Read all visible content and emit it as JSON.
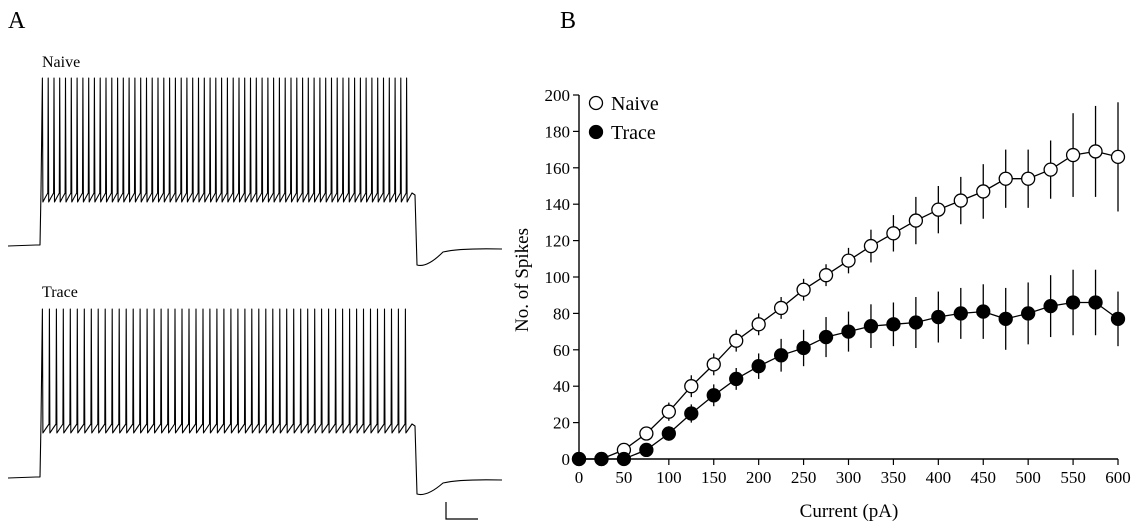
{
  "panels": {
    "a": {
      "letter": "A",
      "traces": [
        {
          "label": "Naive",
          "spike_count": 64
        },
        {
          "label": "Trace",
          "spike_count": 53
        }
      ]
    },
    "b": {
      "letter": "B"
    }
  },
  "chart_data": {
    "type": "scatter",
    "title": "",
    "xlabel": "Current (pA)",
    "ylabel": "No. of Spikes",
    "xlim": [
      0,
      600
    ],
    "ylim": [
      0,
      200
    ],
    "xticks": [
      0,
      50,
      100,
      150,
      200,
      250,
      300,
      350,
      400,
      450,
      500,
      550,
      600
    ],
    "yticks": [
      0,
      20,
      40,
      60,
      80,
      100,
      120,
      140,
      160,
      180,
      200
    ],
    "legend_position": "top-left",
    "x": [
      0,
      25,
      50,
      75,
      100,
      125,
      150,
      175,
      200,
      225,
      250,
      275,
      300,
      325,
      350,
      375,
      400,
      425,
      450,
      475,
      500,
      525,
      550,
      575,
      600
    ],
    "series": [
      {
        "name": "Naive",
        "marker": "open-circle",
        "color": "#000000",
        "values": [
          0,
          0,
          5,
          14,
          26,
          40,
          52,
          65,
          74,
          83,
          93,
          101,
          109,
          117,
          124,
          131,
          137,
          142,
          147,
          154,
          154,
          159,
          167,
          169,
          166
        ],
        "errors": [
          0,
          0,
          2,
          3,
          5,
          6,
          6,
          6,
          6,
          6,
          6,
          6,
          7,
          9,
          10,
          13,
          13,
          13,
          15,
          16,
          16,
          16,
          23,
          25,
          30
        ]
      },
      {
        "name": "Trace",
        "marker": "filled-circle",
        "color": "#000000",
        "values": [
          0,
          0,
          0,
          5,
          14,
          25,
          35,
          44,
          51,
          57,
          61,
          67,
          70,
          73,
          74,
          75,
          78,
          80,
          81,
          77,
          80,
          84,
          86,
          86,
          77
        ],
        "errors": [
          0,
          0,
          2,
          3,
          4,
          5,
          6,
          6,
          7,
          9,
          10,
          11,
          11,
          12,
          12,
          14,
          14,
          14,
          15,
          17,
          17,
          17,
          18,
          18,
          15
        ]
      }
    ]
  }
}
